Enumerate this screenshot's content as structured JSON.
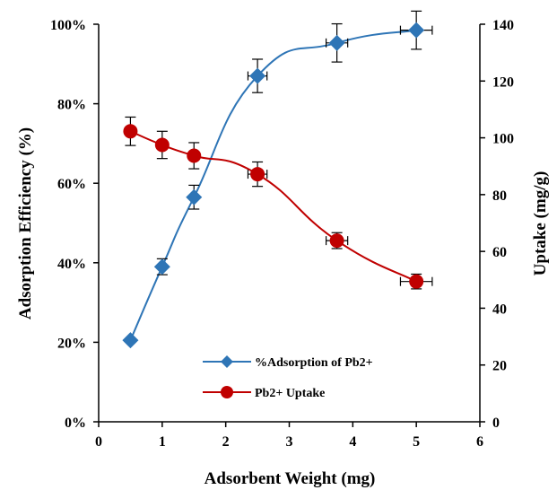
{
  "chart_data": {
    "type": "line",
    "xlabel": "Adsorbent Weight (mg)",
    "ylabel": "Adsorption Efficiency (%)",
    "y2label": "Uptake (mg/g)",
    "xlim": [
      0,
      6
    ],
    "ylim": [
      0,
      100
    ],
    "y2lim": [
      0,
      140
    ],
    "x_ticks": [
      "0",
      "1",
      "2",
      "3",
      "4",
      "5",
      "6"
    ],
    "y_ticks": [
      "0%",
      "20%",
      "40%",
      "60%",
      "80%",
      "100%"
    ],
    "y2_ticks": [
      "0",
      "20",
      "40",
      "60",
      "80",
      "100",
      "120",
      "140"
    ],
    "grid": false,
    "legend_position": "bottom-center",
    "series": [
      {
        "name": "%Adsorption of Pb2+",
        "axis": "left",
        "marker": "diamond",
        "color": "#2E75B6",
        "x": [
          0.5,
          1,
          1.5,
          2.5,
          3.75,
          5
        ],
        "y": [
          20.5,
          39,
          56.5,
          87,
          95.3,
          98.5
        ],
        "y_err": [
          0,
          2,
          3,
          4.2,
          4.8,
          4.8
        ],
        "x_err": [
          0,
          0,
          0,
          0.15,
          0.17,
          0.25
        ]
      },
      {
        "name": "Pb2+ Uptake",
        "axis": "right",
        "marker": "circle",
        "color": "#C00000",
        "x": [
          0.5,
          1,
          1.5,
          2.5,
          3.75,
          5
        ],
        "y": [
          102.3,
          97.5,
          93.7,
          87.2,
          63.8,
          49.4
        ],
        "y_err": [
          5,
          4.8,
          4.6,
          4.3,
          2.8,
          2.6
        ],
        "x_err": [
          0,
          0,
          0,
          0.15,
          0.17,
          0.25
        ]
      }
    ]
  }
}
